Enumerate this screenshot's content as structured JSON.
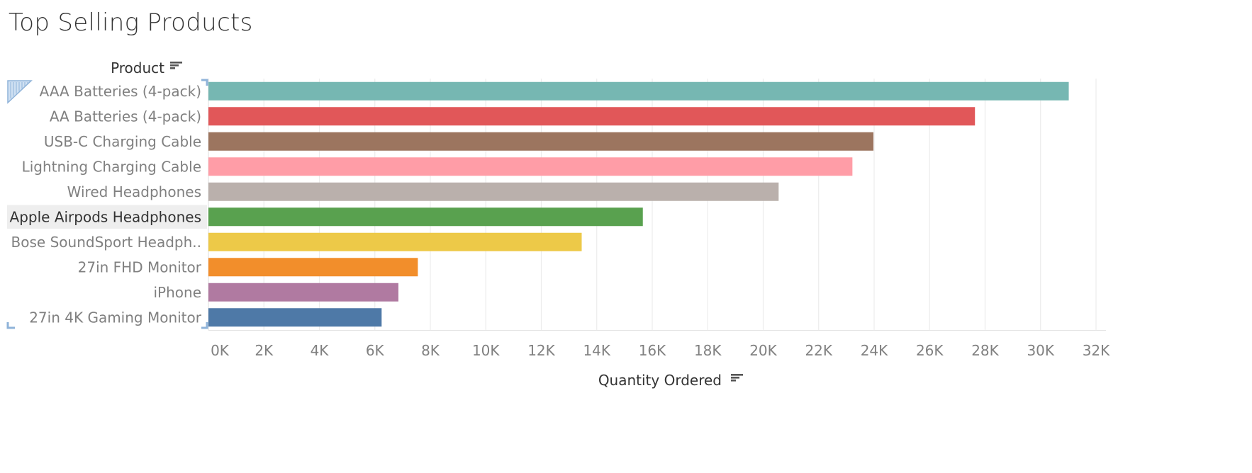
{
  "title": "Top Selling Products",
  "chart_data": {
    "type": "bar",
    "orientation": "horizontal",
    "title": "Top Selling Products",
    "ylabel": "Product",
    "xlabel": "Quantity Ordered",
    "categories": [
      "AAA Batteries (4-pack)",
      "AA Batteries (4-pack)",
      "USB-C Charging Cable",
      "Lightning Charging Cable",
      "Wired Headphones",
      "Apple Airpods Headphones",
      "Bose SoundSport Headph..",
      "27in FHD Monitor",
      "iPhone",
      "27in 4K Gaming Monitor"
    ],
    "values": [
      31017,
      27635,
      23975,
      23217,
      20557,
      15661,
      13457,
      7550,
      6849,
      6244
    ],
    "colors": [
      "#76b7b2",
      "#e15759",
      "#9c755f",
      "#ff9da7",
      "#bab0ac",
      "#59a14f",
      "#edc948",
      "#f28e2b",
      "#b07aa1",
      "#4e79a7"
    ],
    "highlighted_category": "Apple Airpods Headphones",
    "xlim": [
      0,
      32000
    ],
    "xticks": [
      "0K",
      "2K",
      "4K",
      "6K",
      "8K",
      "10K",
      "12K",
      "14K",
      "16K",
      "18K",
      "20K",
      "22K",
      "24K",
      "26K",
      "28K",
      "30K",
      "32K"
    ],
    "grid": true,
    "legend": "none"
  }
}
